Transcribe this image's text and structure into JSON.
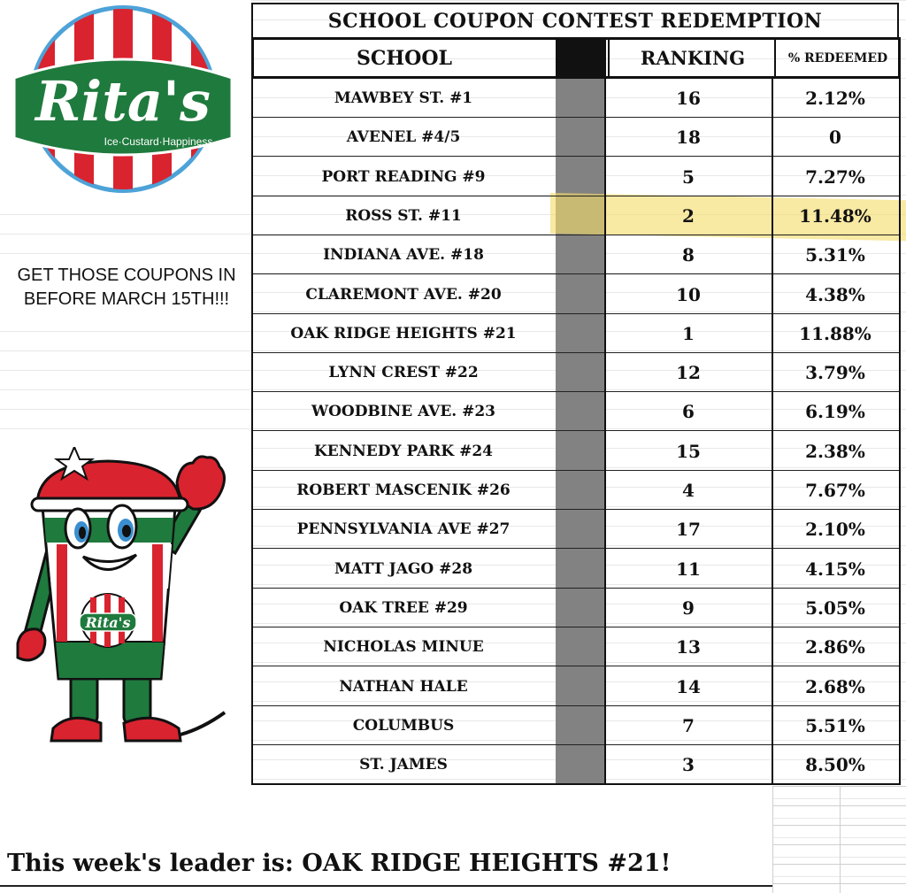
{
  "brand": {
    "name": "Rita's",
    "tagline": "Ice·Custard·Happiness",
    "mascot_badge": "Rita's"
  },
  "note": {
    "line1": "GET THOSE COUPONS IN",
    "line2": "BEFORE MARCH 15TH!!!"
  },
  "table": {
    "title": "SCHOOL COUPON CONTEST REDEMPTION",
    "headers": {
      "school": "SCHOOL",
      "ranking": "RANKING",
      "redeemed": "% REDEEMED"
    },
    "rows": [
      {
        "school": "MAWBEY ST. #1",
        "rank": "16",
        "pct": "2.12%"
      },
      {
        "school": "AVENEL #4/5",
        "rank": "18",
        "pct": "0"
      },
      {
        "school": "PORT READING #9",
        "rank": "5",
        "pct": "7.27%"
      },
      {
        "school": "ROSS ST. #11",
        "rank": "2",
        "pct": "11.48%"
      },
      {
        "school": "INDIANA AVE. #18",
        "rank": "8",
        "pct": "5.31%"
      },
      {
        "school": "CLAREMONT AVE. #20",
        "rank": "10",
        "pct": "4.38%"
      },
      {
        "school": "OAK RIDGE HEIGHTS #21",
        "rank": "1",
        "pct": "11.88%"
      },
      {
        "school": "LYNN CREST #22",
        "rank": "12",
        "pct": "3.79%"
      },
      {
        "school": "WOODBINE AVE. #23",
        "rank": "6",
        "pct": "6.19%"
      },
      {
        "school": "KENNEDY PARK #24",
        "rank": "15",
        "pct": "2.38%"
      },
      {
        "school": "ROBERT MASCENIK #26",
        "rank": "4",
        "pct": "7.67%"
      },
      {
        "school": "PENNSYLVANIA AVE #27",
        "rank": "17",
        "pct": "2.10%"
      },
      {
        "school": "MATT JAGO #28",
        "rank": "11",
        "pct": "4.15%"
      },
      {
        "school": "OAK TREE #29",
        "rank": "9",
        "pct": "5.05%"
      },
      {
        "school": "NICHOLAS MINUE",
        "rank": "13",
        "pct": "2.86%"
      },
      {
        "school": "NATHAN HALE",
        "rank": "14",
        "pct": "2.68%"
      },
      {
        "school": "COLUMBUS",
        "rank": "7",
        "pct": "5.51%"
      },
      {
        "school": "ST. JAMES",
        "rank": "3",
        "pct": "8.50%"
      }
    ],
    "highlighted_row": "ROSS ST. #11",
    "highlight_color": "#f3dc6a"
  },
  "leader": {
    "text": "This week's leader is:  OAK RIDGE HEIGHTS #21!"
  },
  "colors": {
    "brand_red": "#d9232f",
    "brand_green": "#1f7a3d",
    "separator_gray": "#828282"
  }
}
